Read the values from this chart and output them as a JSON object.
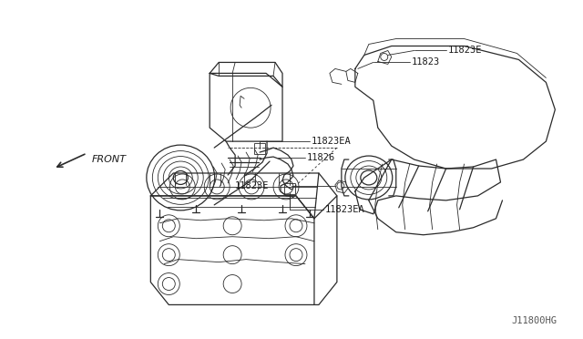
{
  "background_color": "#ffffff",
  "fig_width": 6.4,
  "fig_height": 3.72,
  "dpi": 100,
  "diagram_ref": "J11800HG",
  "line_color": "#2a2a2a",
  "text_color": "#1a1a1a",
  "label_11823": "11823",
  "label_11823E_1": "11823E",
  "label_11823E_2": "11823E",
  "label_11823EA_1": "11823EA",
  "label_11826": "11826",
  "label_11823EA_2": "11823EA",
  "label_front": "FRONT"
}
